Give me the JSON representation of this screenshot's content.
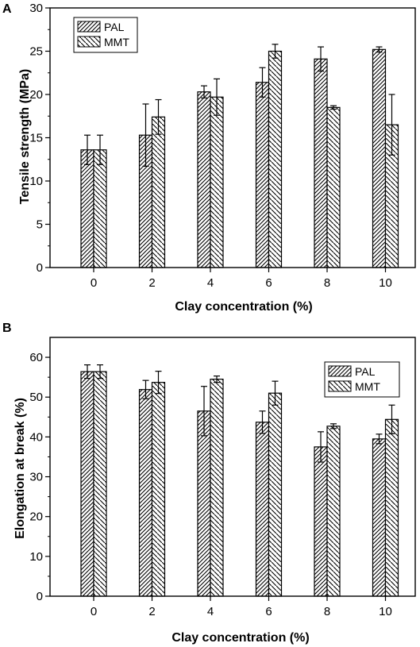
{
  "chart_data": [
    {
      "type": "bar",
      "panel_label": "A",
      "categories": [
        "0",
        "2",
        "4",
        "6",
        "8",
        "10"
      ],
      "series": [
        {
          "name": "PAL",
          "values": [
            13.6,
            15.3,
            20.3,
            21.4,
            24.1,
            25.2
          ],
          "errors": [
            1.7,
            3.6,
            0.7,
            1.7,
            1.4,
            0.3
          ],
          "pattern": "hatch-forward"
        },
        {
          "name": "MMT",
          "values": [
            13.6,
            17.4,
            19.7,
            25.0,
            18.5,
            16.5
          ],
          "errors": [
            1.7,
            2.0,
            2.1,
            0.8,
            0.2,
            3.5
          ],
          "pattern": "hatch-backward"
        }
      ],
      "xlabel": "Clay concentration (%)",
      "ylabel": "Tensile strength (MPa)",
      "ylim": [
        0,
        30
      ],
      "yticks": [
        "0",
        "5",
        "10",
        "15",
        "20",
        "25",
        "30"
      ],
      "grid": false,
      "legend_position": "top-left"
    },
    {
      "type": "bar",
      "panel_label": "B",
      "categories": [
        "0",
        "2",
        "4",
        "6",
        "8",
        "10"
      ],
      "series": [
        {
          "name": "PAL",
          "values": [
            56.4,
            51.9,
            46.5,
            43.7,
            37.5,
            39.5
          ],
          "errors": [
            1.7,
            2.3,
            6.2,
            2.8,
            3.8,
            1.2
          ],
          "pattern": "hatch-forward"
        },
        {
          "name": "MMT",
          "values": [
            56.4,
            53.7,
            54.5,
            51.0,
            42.7,
            44.4
          ],
          "errors": [
            1.7,
            2.8,
            0.8,
            3.0,
            0.6,
            3.6
          ],
          "pattern": "hatch-backward"
        }
      ],
      "xlabel": "Clay concentration (%)",
      "ylabel": "Elongation at break (%)",
      "ylim": [
        0,
        65
      ],
      "yticks": [
        "0",
        "10",
        "20",
        "30",
        "40",
        "50",
        "60"
      ],
      "grid": false,
      "legend_position": "top-right"
    }
  ]
}
